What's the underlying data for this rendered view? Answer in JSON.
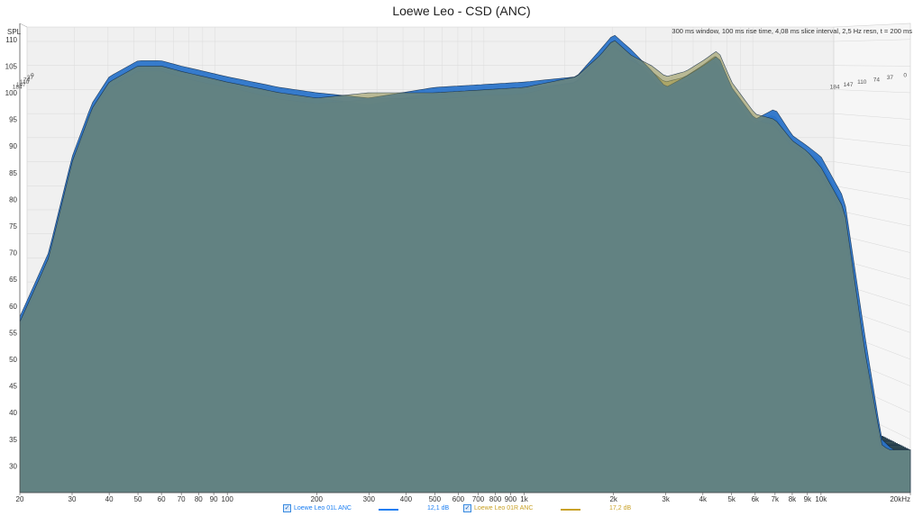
{
  "chart_data": {
    "type": "waterfall",
    "title": "Loewe Leo - CSD (ANC)",
    "info": "300 ms window, 100 ms rise time, 4,08 ms slice interval, 2,5 Hz resn, t = 200 ms",
    "ylabel": "SPL",
    "ylim": [
      25,
      113
    ],
    "xlim": [
      20,
      20000
    ],
    "xscale": "log",
    "yticks": [
      30,
      35,
      40,
      45,
      50,
      55,
      60,
      65,
      70,
      75,
      80,
      85,
      90,
      95,
      100,
      105,
      110
    ],
    "xticks": [
      {
        "v": 20,
        "t": "20"
      },
      {
        "v": 30,
        "t": "30"
      },
      {
        "v": 40,
        "t": "40"
      },
      {
        "v": 50,
        "t": "50"
      },
      {
        "v": 60,
        "t": "60"
      },
      {
        "v": 70,
        "t": "70"
      },
      {
        "v": 80,
        "t": "80"
      },
      {
        "v": 90,
        "t": "90"
      },
      {
        "v": 100,
        "t": "100"
      },
      {
        "v": 200,
        "t": "200"
      },
      {
        "v": 300,
        "t": "300"
      },
      {
        "v": 400,
        "t": "400"
      },
      {
        "v": 500,
        "t": "500"
      },
      {
        "v": 600,
        "t": "600"
      },
      {
        "v": 700,
        "t": "700"
      },
      {
        "v": 800,
        "t": "800"
      },
      {
        "v": 900,
        "t": "900"
      },
      {
        "v": 1000,
        "t": "1k"
      },
      {
        "v": 2000,
        "t": "2k"
      },
      {
        "v": 3000,
        "t": "3k"
      },
      {
        "v": 4000,
        "t": "4k"
      },
      {
        "v": 5000,
        "t": "5k"
      },
      {
        "v": 6000,
        "t": "6k"
      },
      {
        "v": 7000,
        "t": "7k"
      },
      {
        "v": 8000,
        "t": "8k"
      },
      {
        "v": 9000,
        "t": "9k"
      },
      {
        "v": 10000,
        "t": "10k"
      },
      {
        "v": 20000,
        "t": "20kHz"
      }
    ],
    "time_ticks_ms": [
      "0",
      "37",
      "74",
      "110",
      "147",
      "184"
    ],
    "time_range_ms": [
      0,
      200
    ],
    "floor_db": 33,
    "series": [
      {
        "name": "Loewe Leo 01L ANC",
        "color": "#1a7ef2",
        "value": "12,1 dB",
        "response_t0": [
          [
            20,
            58
          ],
          [
            25,
            70
          ],
          [
            30,
            88
          ],
          [
            35,
            98
          ],
          [
            40,
            103
          ],
          [
            50,
            106
          ],
          [
            60,
            106
          ],
          [
            70,
            105
          ],
          [
            100,
            103
          ],
          [
            150,
            101
          ],
          [
            200,
            100
          ],
          [
            300,
            99
          ],
          [
            500,
            101
          ],
          [
            1000,
            102
          ],
          [
            1500,
            103
          ],
          [
            1800,
            108
          ],
          [
            2000,
            111
          ],
          [
            2300,
            108
          ],
          [
            2700,
            104
          ],
          [
            3000,
            101
          ],
          [
            3500,
            103
          ],
          [
            4000,
            105
          ],
          [
            4500,
            107
          ],
          [
            5000,
            101
          ],
          [
            6000,
            95
          ],
          [
            7000,
            97
          ],
          [
            8000,
            92
          ],
          [
            9000,
            90
          ],
          [
            10000,
            88
          ],
          [
            12000,
            80
          ],
          [
            14000,
            55
          ],
          [
            16000,
            35
          ],
          [
            20000,
            30
          ]
        ]
      },
      {
        "name": "Loewe Leo 01R ANC",
        "color": "#c9a227",
        "value": "17,2 dB",
        "response_t0": [
          [
            20,
            57
          ],
          [
            25,
            69
          ],
          [
            30,
            87
          ],
          [
            35,
            97
          ],
          [
            40,
            102
          ],
          [
            50,
            105
          ],
          [
            60,
            105
          ],
          [
            70,
            104
          ],
          [
            100,
            102
          ],
          [
            150,
            100
          ],
          [
            200,
            99
          ],
          [
            300,
            100
          ],
          [
            500,
            100
          ],
          [
            1000,
            101
          ],
          [
            1500,
            103
          ],
          [
            1800,
            107
          ],
          [
            2000,
            110
          ],
          [
            2300,
            107
          ],
          [
            2700,
            105
          ],
          [
            3000,
            103
          ],
          [
            3500,
            104
          ],
          [
            4000,
            106
          ],
          [
            4500,
            108
          ],
          [
            5000,
            102
          ],
          [
            6000,
            96
          ],
          [
            7000,
            95
          ],
          [
            8000,
            91
          ],
          [
            9000,
            89
          ],
          [
            10000,
            86
          ],
          [
            12000,
            78
          ],
          [
            14000,
            52
          ],
          [
            16000,
            34
          ],
          [
            20000,
            30
          ]
        ]
      }
    ]
  }
}
